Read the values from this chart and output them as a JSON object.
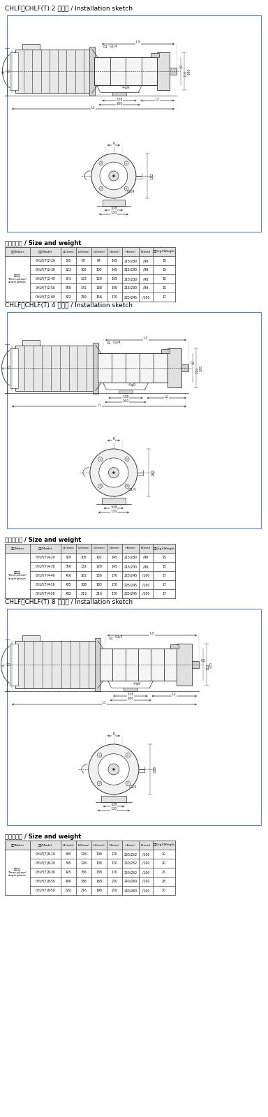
{
  "title1": "CHLF、CHLF(T) 2 安装图 / Installation sketch",
  "title2": "CHLF、CHLF(T) 4 安装图 / Installation sketch",
  "title3": "CHLF、CHLF(T) 8 安装图 / Installation sketch",
  "table1_header": [
    "电机/Motor",
    "型号/Model",
    "L1(mm)",
    "L2(mm)",
    "L3(mm)",
    "D(mm)",
    "H(mm)",
    "K(mm)",
    "重量(kg)/Weight"
  ],
  "table1_motor": "三相单相\nThree-phase/\nsingle-phase",
  "table1_rows": [
    [
      "CHLF(T)2-20",
      "305",
      "87",
      "84",
      "145",
      "215/230",
      "/98",
      "15"
    ],
    [
      "CHLF(T)2-30",
      "323",
      "105",
      "102",
      "145",
      "215/230",
      "/98",
      "15"
    ],
    [
      "CHLF(T)2-40",
      "341",
      "123",
      "120",
      "145",
      "215/230",
      "/98",
      "15"
    ],
    [
      "CHLF(T)2-50",
      "359",
      "141",
      "138",
      "145",
      "215/230",
      "/98",
      "15"
    ],
    [
      "CHLF(T)2-60",
      "422",
      "159",
      "156",
      "170",
      "225/245",
      "/100",
      "17"
    ]
  ],
  "table2_header": [
    "电机/Motor",
    "型号/Model",
    "L1(mm)",
    "L2(mm)",
    "L3(mm)",
    "D(mm)",
    "H(mm)",
    "K(mm)",
    "重量(kg)/Weight"
  ],
  "table2_motor": "三相单相\nThree-phase/\nsingle-phase",
  "table2_rows": [
    [
      "CHLF(T)4-20",
      "329",
      "105",
      "102",
      "145",
      "215/230",
      "/96",
      "15"
    ],
    [
      "CHLF(T)4-30",
      "356",
      "132",
      "129",
      "145",
      "215/230",
      "/96",
      "15"
    ],
    [
      "CHLF(T)4-40",
      "416",
      "162",
      "156",
      "170",
      "225/245",
      "/100",
      "17"
    ],
    [
      "CHLF(T)4-50",
      "435",
      "188",
      "183",
      "170",
      "225/245",
      "/100",
      "17"
    ],
    [
      "CHLF(T)4-50",
      "482",
      "213",
      "210",
      "170",
      "225/245",
      "/100",
      "17"
    ]
  ],
  "table3_header": [
    "电机/Motor",
    "型号/Model",
    "L1(mm)",
    "L2(mm)",
    "L3(mm)",
    "D(mm)",
    "H(mm)",
    "K(mm)",
    "重量(kg)/Weight"
  ],
  "table3_motor": "三相单相\nThree-phase/\nsingle-phase",
  "table3_rows": [
    [
      "CHLF(T)8-10",
      "395",
      "126",
      "108",
      "170",
      "250/252",
      "/100",
      "20"
    ],
    [
      "CHLF(T)8-20",
      "395",
      "126",
      "108",
      "170",
      "250/252",
      "/100",
      "20"
    ],
    [
      "CHLF(T)8-30",
      "425",
      "156",
      "138",
      "170",
      "250/252",
      "/100",
      "25"
    ],
    [
      "CHLF(T)8-50",
      "490",
      "186",
      "168",
      "210",
      "240/260",
      "/100",
      "28"
    ],
    [
      "CHLF(T)8-50",
      "520",
      "216",
      "198",
      "210",
      "240/260",
      "/100",
      "30"
    ]
  ],
  "bg_color": "#ffffff",
  "border_color": "#5b7fc4",
  "line_color": "#303030",
  "dim_color": "#303030",
  "gray_fill": "#e8e8e8"
}
